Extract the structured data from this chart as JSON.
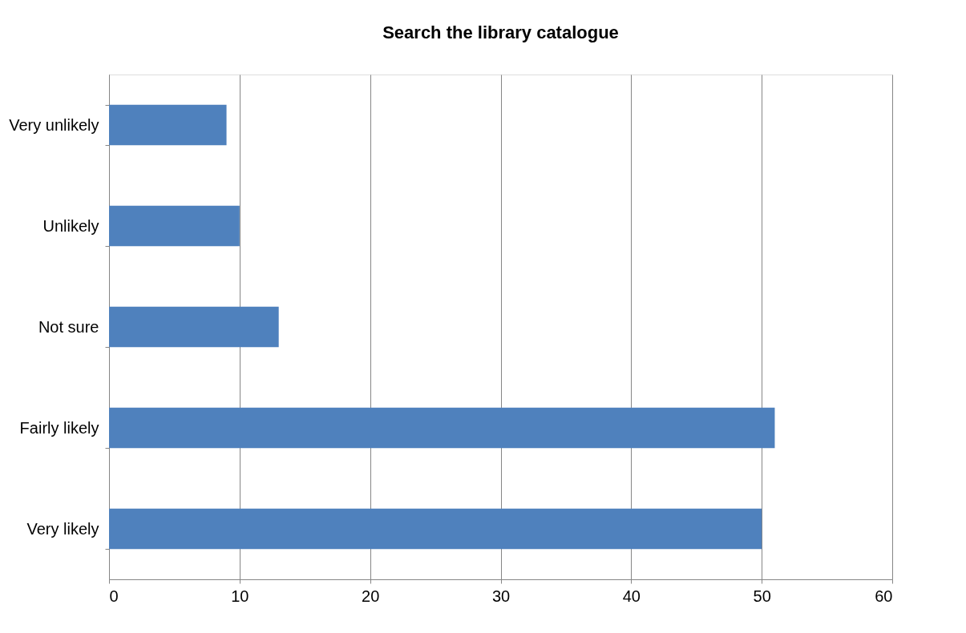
{
  "chart_data": {
    "type": "bar",
    "orientation": "horizontal",
    "title": "Search the library catalogue",
    "categories": [
      "Very unlikely",
      "Unlikely",
      "Not sure",
      "Fairly likely",
      "Very likely"
    ],
    "values": [
      9,
      10,
      13,
      51,
      50
    ],
    "color": "#4f81bd",
    "xlim": [
      0,
      60
    ],
    "xticks": [
      0,
      10,
      20,
      30,
      40,
      50,
      60
    ],
    "grid": "x"
  }
}
